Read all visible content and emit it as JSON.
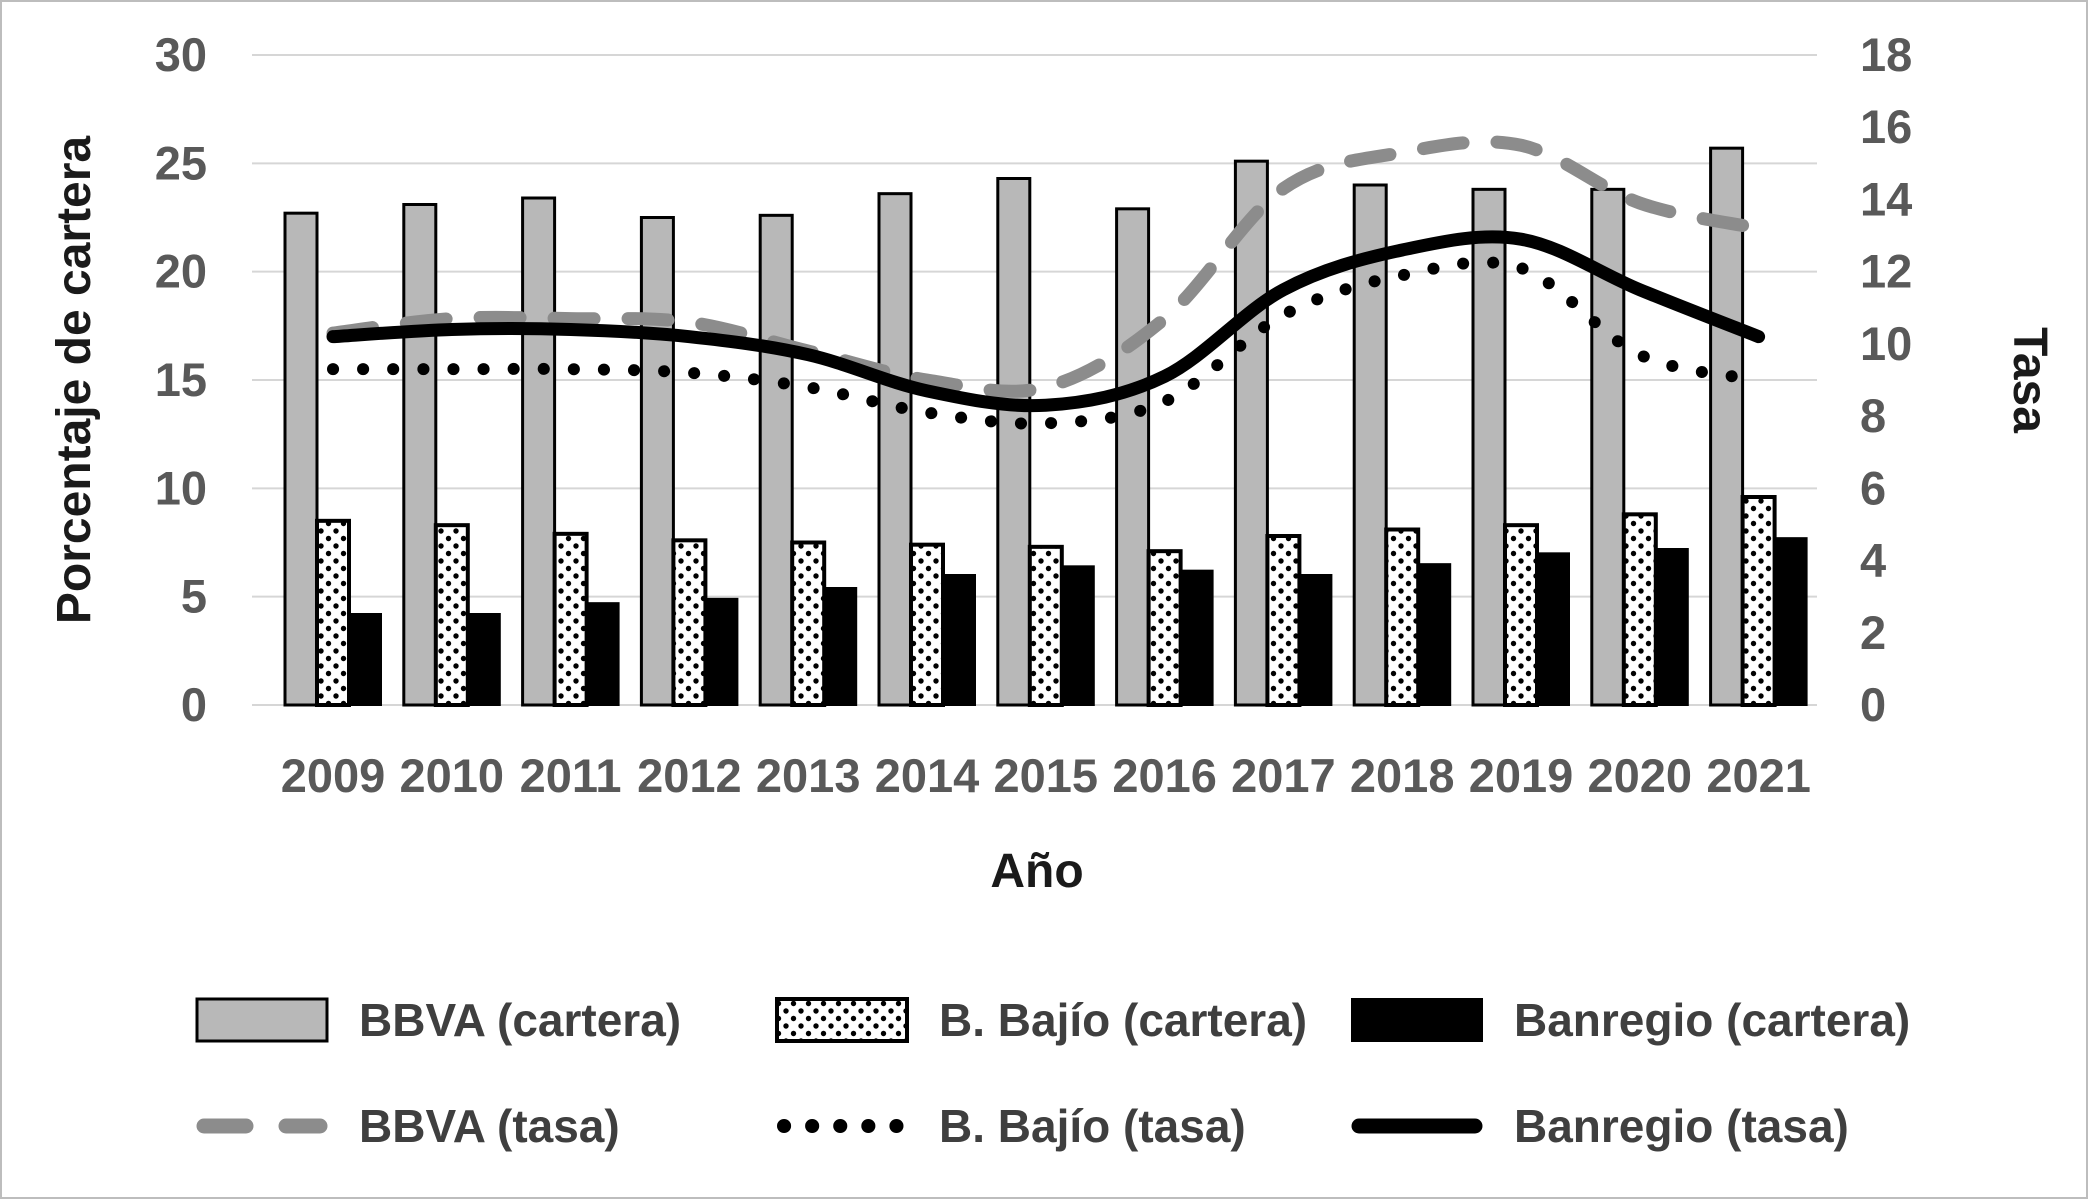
{
  "chart_data": {
    "type": "bar+line",
    "title": "",
    "xlabel": "Año",
    "ylabel_left": "Porcentaje de cartera",
    "ylabel_right": "Tasa",
    "categories": [
      "2009",
      "2010",
      "2011",
      "2012",
      "2013",
      "2014",
      "2015",
      "2016",
      "2017",
      "2018",
      "2019",
      "2020",
      "2021"
    ],
    "left_axis": {
      "label": "Porcentaje de cartera",
      "min": 0,
      "max": 30,
      "ticks": [
        0,
        5,
        10,
        15,
        20,
        25,
        30
      ]
    },
    "right_axis": {
      "label": "Tasa",
      "min": 0,
      "max": 18,
      "ticks": [
        0,
        2,
        4,
        6,
        8,
        10,
        12,
        14,
        16,
        18
      ]
    },
    "grid": true,
    "legend_position": "bottom",
    "bar_series": [
      {
        "name": "BBVA (cartera)",
        "axis": "left",
        "style": "bar-gray",
        "values": [
          22.7,
          23.1,
          23.4,
          22.5,
          22.6,
          23.6,
          24.3,
          22.9,
          25.1,
          24.0,
          23.8,
          23.8,
          25.7
        ]
      },
      {
        "name": "B. Bajío (cartera)",
        "axis": "left",
        "style": "bar-dotted",
        "values": [
          8.5,
          8.3,
          7.9,
          7.6,
          7.5,
          7.4,
          7.3,
          7.1,
          7.8,
          8.1,
          8.3,
          8.8,
          9.6
        ]
      },
      {
        "name": "Banregio (cartera)",
        "axis": "left",
        "style": "bar-black",
        "values": [
          4.2,
          4.2,
          4.7,
          4.9,
          5.4,
          6.0,
          6.4,
          6.2,
          6.0,
          6.5,
          7.0,
          7.2,
          7.7
        ]
      }
    ],
    "line_series": [
      {
        "name": "BBVA (tasa)",
        "axis": "right",
        "style": "line-dashed",
        "values": [
          10.3,
          10.7,
          10.7,
          10.6,
          9.8,
          9.0,
          8.8,
          10.7,
          14.3,
          15.3,
          15.5,
          13.9,
          13.2
        ]
      },
      {
        "name": "B. Bajío (tasa)",
        "axis": "right",
        "style": "line-dotted",
        "values": [
          9.3,
          9.3,
          9.3,
          9.2,
          8.8,
          8.1,
          7.8,
          8.4,
          10.8,
          11.9,
          12.1,
          9.7,
          9.0
        ]
      },
      {
        "name": "Banregio (tasa)",
        "axis": "right",
        "style": "line-solid",
        "values": [
          10.2,
          10.4,
          10.4,
          10.2,
          9.7,
          8.7,
          8.3,
          9.1,
          11.5,
          12.6,
          12.9,
          11.5,
          10.2
        ]
      }
    ],
    "legend": {
      "rows": [
        [
          {
            "label": "BBVA (cartera)",
            "marker": "bar-gray"
          },
          {
            "label": "B. Bajío (cartera)",
            "marker": "bar-dotted"
          },
          {
            "label": "Banregio (cartera)",
            "marker": "bar-black"
          }
        ],
        [
          {
            "label": "BBVA (tasa)",
            "marker": "line-dashed"
          },
          {
            "label": "B. Bajío (tasa)",
            "marker": "line-dotted"
          },
          {
            "label": "Banregio (tasa)",
            "marker": "line-solid"
          }
        ]
      ]
    },
    "colors": {
      "bar_gray": "#b8b8b8",
      "bar_black": "#000000",
      "dot_fill": "#ffffff",
      "line_gray": "#8c8c8c",
      "line_black": "#000000",
      "gridline": "#d6d6d6",
      "tick_text": "#595959",
      "legend_text": "#3f3f3f"
    }
  }
}
